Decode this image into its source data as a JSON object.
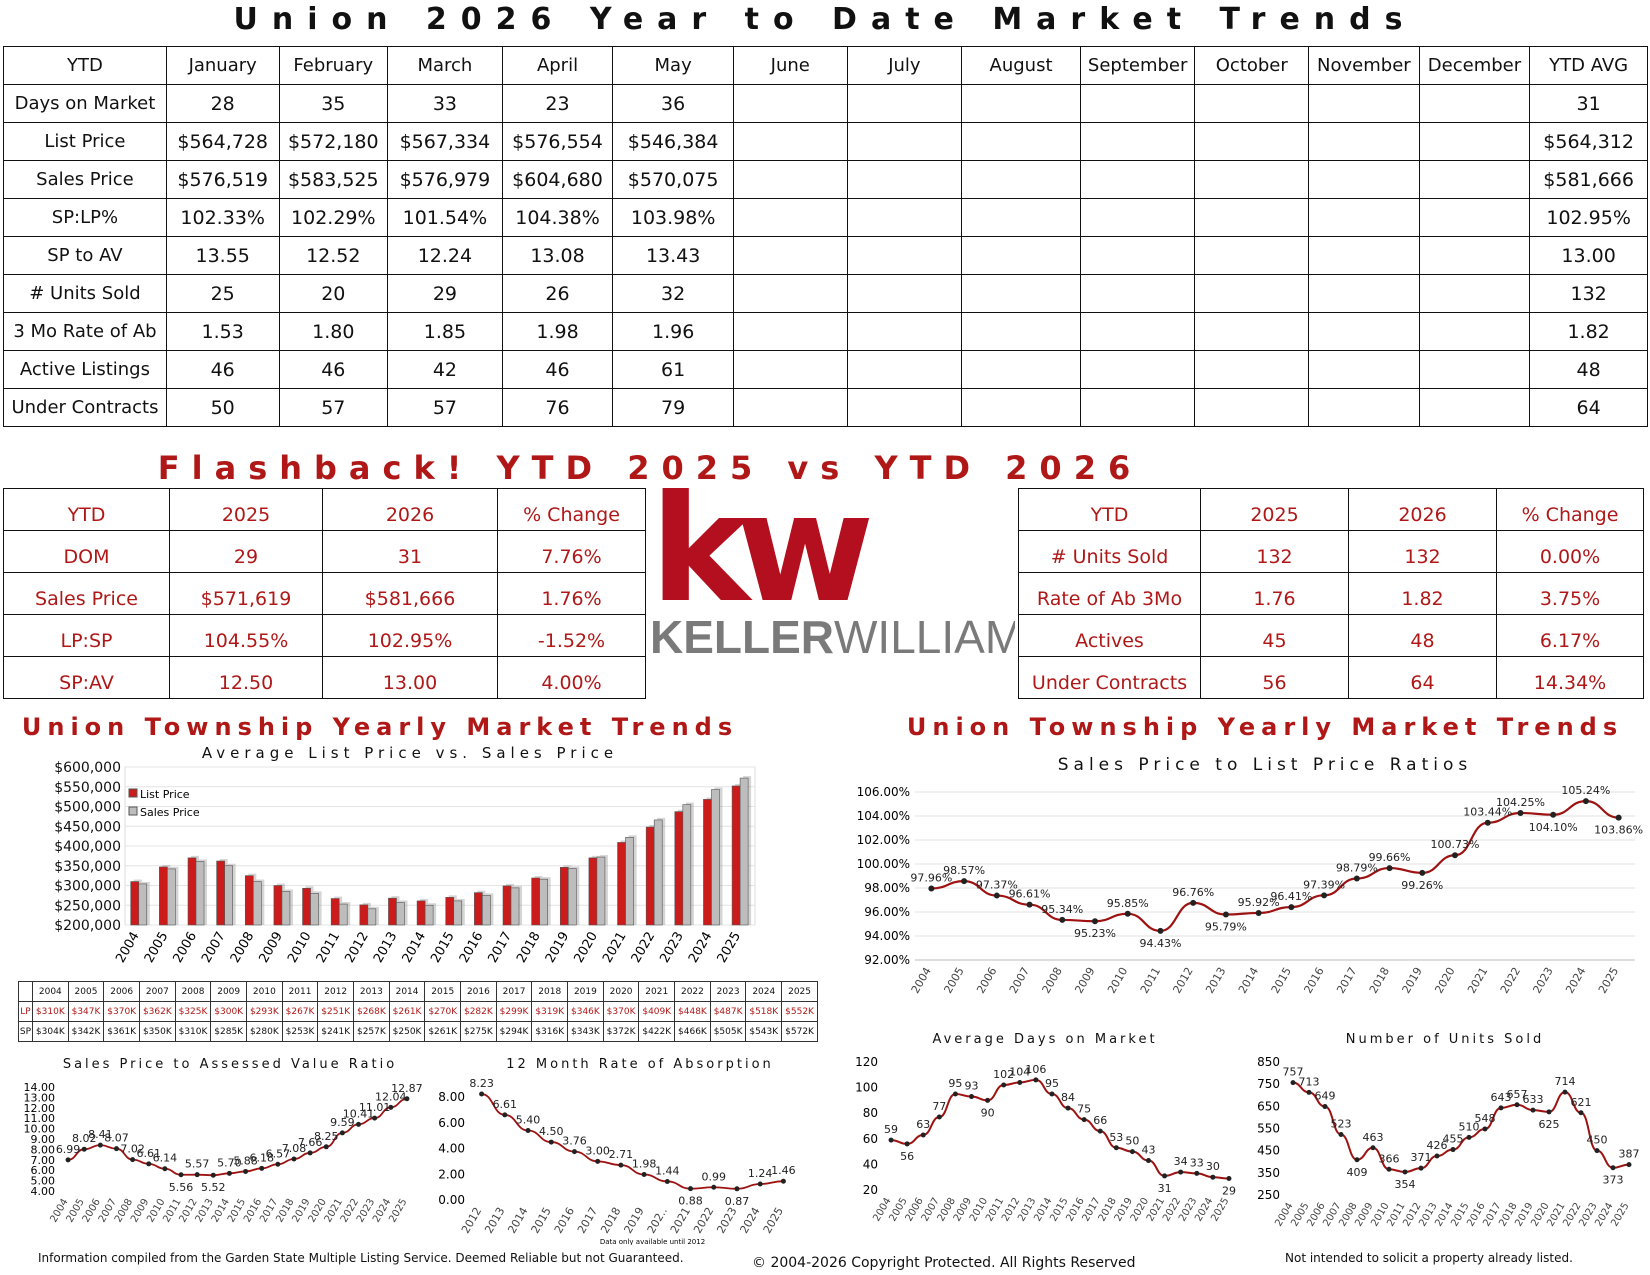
{
  "title": "Union 2026 Year to Date Market Trends",
  "main_table": {
    "header": [
      "YTD",
      "January",
      "February",
      "March",
      "April",
      "May",
      "June",
      "July",
      "August",
      "September",
      "October",
      "November",
      "December",
      "YTD AVG"
    ],
    "rows": [
      [
        "Days on Market",
        "28",
        "35",
        "33",
        "23",
        "36",
        "",
        "",
        "",
        "",
        "",
        "",
        "",
        "31"
      ],
      [
        "List Price",
        "$564,728",
        "$572,180",
        "$567,334",
        "$576,554",
        "$546,384",
        "",
        "",
        "",
        "",
        "",
        "",
        "",
        "$564,312"
      ],
      [
        "Sales Price",
        "$576,519",
        "$583,525",
        "$576,979",
        "$604,680",
        "$570,075",
        "",
        "",
        "",
        "",
        "",
        "",
        "",
        "$581,666"
      ],
      [
        "SP:LP%",
        "102.33%",
        "102.29%",
        "101.54%",
        "104.38%",
        "103.98%",
        "",
        "",
        "",
        "",
        "",
        "",
        "",
        "102.95%"
      ],
      [
        "SP to AV",
        "13.55",
        "12.52",
        "12.24",
        "13.08",
        "13.43",
        "",
        "",
        "",
        "",
        "",
        "",
        "",
        "13.00"
      ],
      [
        "# Units Sold",
        "25",
        "20",
        "29",
        "26",
        "32",
        "",
        "",
        "",
        "",
        "",
        "",
        "",
        "132"
      ],
      [
        "3 Mo Rate of Ab",
        "1.53",
        "1.80",
        "1.85",
        "1.98",
        "1.96",
        "",
        "",
        "",
        "",
        "",
        "",
        "",
        "1.82"
      ],
      [
        "Active Listings",
        "46",
        "46",
        "42",
        "46",
        "61",
        "",
        "",
        "",
        "",
        "",
        "",
        "",
        "48"
      ],
      [
        "Under Contracts",
        "50",
        "57",
        "57",
        "76",
        "79",
        "",
        "",
        "",
        "",
        "",
        "",
        "",
        "64"
      ]
    ]
  },
  "flashback_title": "Flashback!  YTD 2025 vs YTD 2026",
  "flash_left": {
    "header": [
      "YTD",
      "2025",
      "2026",
      "% Change"
    ],
    "rows": [
      [
        "DOM",
        "29",
        "31",
        "7.76%"
      ],
      [
        "Sales Price",
        "$571,619",
        "$581,666",
        "1.76%"
      ],
      [
        "LP:SP",
        "104.55%",
        "102.95%",
        "-1.52%"
      ],
      [
        "SP:AV",
        "12.50",
        "13.00",
        "4.00%"
      ]
    ]
  },
  "flash_right": {
    "header": [
      "YTD",
      "2025",
      "2026",
      "% Change"
    ],
    "rows": [
      [
        "# Units Sold",
        "132",
        "132",
        "0.00%"
      ],
      [
        "Rate of Ab 3Mo",
        "1.76",
        "1.82",
        "3.75%"
      ],
      [
        "Actives",
        "45",
        "48",
        "6.17%"
      ],
      [
        "Under Contracts",
        "56",
        "64",
        "14.34%"
      ]
    ]
  },
  "logo": {
    "kw": "kw",
    "brand_a": "KELLER",
    "brand_b": "WILLIAMS",
    "color_red": "#b40f1e",
    "color_gray": "#7a7a7a"
  },
  "colors": {
    "accent": "#b01818",
    "bar_red": "#cc1b1b",
    "bar_gray": "#bdbdbd",
    "line": "#9e1212"
  },
  "left_section_title": "Union Township Yearly Market Trends",
  "right_section_title": "Union Township Yearly Market Trends",
  "years": [
    "2004",
    "2005",
    "2006",
    "2007",
    "2008",
    "2009",
    "2010",
    "2011",
    "2012",
    "2013",
    "2014",
    "2015",
    "2016",
    "2017",
    "2018",
    "2019",
    "2020",
    "2021",
    "2022",
    "2023",
    "2024",
    "2025"
  ],
  "price_table": {
    "lp_label": "LP",
    "sp_label": "SP",
    "lp": [
      "$310K",
      "$347K",
      "$370K",
      "$362K",
      "$325K",
      "$300K",
      "$293K",
      "$267K",
      "$251K",
      "$268K",
      "$261K",
      "$270K",
      "$282K",
      "$299K",
      "$319K",
      "$346K",
      "$370K",
      "$409K",
      "$448K",
      "$487K",
      "$518K",
      "$552K"
    ],
    "sp": [
      "$304K",
      "$342K",
      "$361K",
      "$350K",
      "$310K",
      "$285K",
      "$280K",
      "$253K",
      "$241K",
      "$257K",
      "$250K",
      "$261K",
      "$275K",
      "$294K",
      "$316K",
      "$343K",
      "$372K",
      "$422K",
      "$466K",
      "$505K",
      "$543K",
      "$572K"
    ]
  },
  "chart_data": [
    {
      "type": "bar",
      "title": "Average List Price vs. Sales Price",
      "categories": [
        "2004",
        "2005",
        "2006",
        "2007",
        "2008",
        "2009",
        "2010",
        "2011",
        "2012",
        "2013",
        "2014",
        "2015",
        "2016",
        "2017",
        "2018",
        "2019",
        "2020",
        "2021",
        "2022",
        "2023",
        "2024",
        "2025"
      ],
      "series": [
        {
          "name": "List Price",
          "color": "#cc1b1b",
          "values": [
            310000,
            347000,
            370000,
            362000,
            325000,
            300000,
            293000,
            267000,
            251000,
            268000,
            261000,
            270000,
            282000,
            299000,
            319000,
            346000,
            370000,
            409000,
            448000,
            487000,
            518000,
            552000
          ]
        },
        {
          "name": "Sales Price",
          "color": "#bdbdbd",
          "values": [
            304000,
            342000,
            361000,
            350000,
            310000,
            285000,
            280000,
            253000,
            241000,
            257000,
            250000,
            261000,
            275000,
            294000,
            316000,
            343000,
            372000,
            422000,
            466000,
            505000,
            543000,
            572000
          ]
        }
      ],
      "ylim": [
        200000,
        600000
      ],
      "yticks": [
        "$200,000",
        "$250,000",
        "$300,000",
        "$350,000",
        "$400,000",
        "$450,000",
        "$500,000",
        "$550,000",
        "$600,000"
      ],
      "legend": "top-left"
    },
    {
      "type": "line",
      "title": "Sales Price to List Price Ratios",
      "x": [
        "2004",
        "2005",
        "2006",
        "2007",
        "2008",
        "2009",
        "2010",
        "2011",
        "2012",
        "2013",
        "2014",
        "2015",
        "2016",
        "2017",
        "2018",
        "2019",
        "2020",
        "2021",
        "2022",
        "2023",
        "2024",
        "2025"
      ],
      "values": [
        97.96,
        98.57,
        97.37,
        96.61,
        95.34,
        95.23,
        95.85,
        94.43,
        96.76,
        95.79,
        95.92,
        96.41,
        97.39,
        98.79,
        99.66,
        99.26,
        100.73,
        103.44,
        104.25,
        104.1,
        105.24,
        103.86
      ],
      "labels": [
        "97.96%",
        "98.57%",
        "97.37%",
        "96.61%",
        "95.34%",
        "95.23%",
        "95.85%",
        "94.43%",
        "96.76%",
        "95.79%",
        "95.92%",
        "96.41%",
        "97.39%",
        "98.79%",
        "99.66%",
        "99.26%",
        "100.73%",
        "103.44%",
        "104.25%",
        "104.10%",
        "105.24%",
        "103.86%"
      ],
      "ylim": [
        92,
        106
      ],
      "yticks": [
        "92.00%",
        "94.00%",
        "96.00%",
        "98.00%",
        "100.00%",
        "102.00%",
        "104.00%",
        "106.00%"
      ]
    },
    {
      "type": "line",
      "title": "Sales Price to Assessed Value Ratio",
      "x": [
        "2004",
        "2005",
        "2006",
        "2007",
        "2008",
        "2009",
        "2010",
        "2011",
        "2012",
        "2013",
        "2014",
        "2015",
        "2016",
        "2017",
        "2018",
        "2019",
        "2020",
        "2021",
        "2022",
        "2023",
        "2024",
        "2025"
      ],
      "values": [
        6.99,
        8.02,
        8.41,
        8.07,
        7.02,
        6.61,
        6.14,
        5.56,
        5.57,
        5.52,
        5.7,
        5.88,
        6.18,
        6.57,
        7.08,
        7.66,
        8.25,
        9.59,
        10.41,
        11.01,
        12.04,
        12.87
      ],
      "labels": [
        "6.99",
        "8.02",
        "8.41",
        "8.07",
        "7.02",
        "6.61",
        "6.14",
        "5.56",
        "5.57",
        "5.52",
        "5.70",
        "5.88",
        "6.18",
        "6.57",
        "7.08",
        "7.66",
        "8.25",
        "9.59",
        "10.41",
        "11.01",
        "12.04",
        "12.87"
      ],
      "ylim": [
        4,
        14
      ],
      "yticks": [
        "4.00",
        "5.00",
        "6.00",
        "7.00",
        "8.00",
        "9.00",
        "10.00",
        "11.00",
        "12.00",
        "13.00",
        "14.00"
      ]
    },
    {
      "type": "line",
      "title": "12 Month Rate of Absorption",
      "x": [
        "2012",
        "2013",
        "2014",
        "2015",
        "2016",
        "2017",
        "2018",
        "2019",
        "202..",
        "2021",
        "2022",
        "2023",
        "2024",
        "2025"
      ],
      "values": [
        8.23,
        6.61,
        5.4,
        4.5,
        3.76,
        3.0,
        2.71,
        1.98,
        1.44,
        0.88,
        0.99,
        0.87,
        1.24,
        1.46
      ],
      "labels": [
        "8.23",
        "6.61",
        "5.40",
        "4.50",
        "3.76",
        "3.00",
        "2.71",
        "1.98",
        "1.44",
        "0.88",
        "0.99",
        "0.87",
        "1.24",
        "1.46"
      ],
      "ylim": [
        0,
        8
      ],
      "yticks": [
        "0.00",
        "2.00",
        "4.00",
        "6.00",
        "8.00"
      ],
      "note": "Data only available until 2012"
    },
    {
      "type": "line",
      "title": "Average Days on Market",
      "x": [
        "2004",
        "2005",
        "2006",
        "2007",
        "2008",
        "2009",
        "2010",
        "2011",
        "2012",
        "2013",
        "2014",
        "2015",
        "2016",
        "2017",
        "2018",
        "2019",
        "2020",
        "2021",
        "2022",
        "2023",
        "2024",
        "2025"
      ],
      "values": [
        59,
        56,
        63,
        77,
        95,
        93,
        90,
        102,
        104,
        106,
        95,
        84,
        75,
        66,
        53,
        50,
        43,
        31,
        34,
        33,
        30,
        29
      ],
      "ylim": [
        20,
        120
      ],
      "yticks": [
        "20",
        "40",
        "60",
        "80",
        "100",
        "120"
      ]
    },
    {
      "type": "line",
      "title": "Number of Units Sold",
      "x": [
        "2004",
        "2005",
        "2006",
        "2007",
        "2008",
        "2009",
        "2010",
        "2011",
        "2012",
        "2013",
        "2014",
        "2015",
        "2016",
        "2017",
        "2018",
        "2019",
        "2020",
        "2021",
        "2022",
        "2023",
        "2024",
        "2025"
      ],
      "values": [
        757,
        713,
        649,
        523,
        409,
        463,
        366,
        354,
        371,
        426,
        455,
        510,
        548,
        643,
        657,
        633,
        625,
        714,
        621,
        450,
        373,
        387
      ],
      "ylim": [
        250,
        850
      ],
      "yticks": [
        "250",
        "350",
        "450",
        "550",
        "650",
        "750",
        "850"
      ]
    }
  ],
  "footer": {
    "left": "Information compiled from the Garden State Multiple Listing Service.  Deemed Reliable but not Guaranteed.",
    "center": "© 2004-2026 Copyright Protected.  All Rights Reserved",
    "right": "Not intended to solicit a property already listed."
  }
}
